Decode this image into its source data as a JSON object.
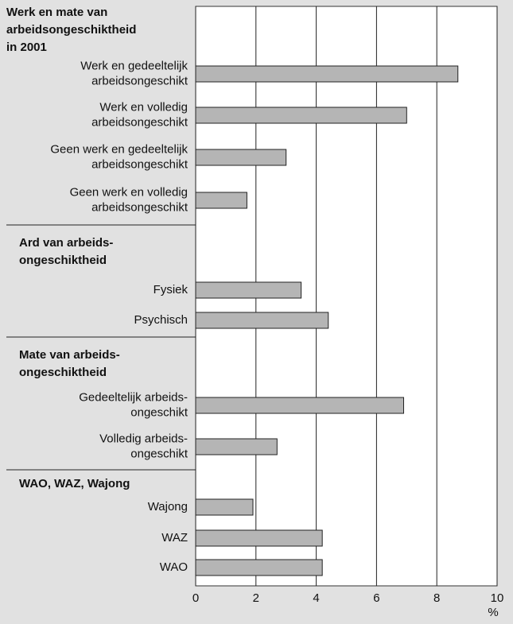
{
  "chart_data": {
    "type": "bar",
    "orientation": "horizontal",
    "color": "#b5b5b5",
    "xlim": [
      0,
      10
    ],
    "xticks": [
      0,
      2,
      4,
      6,
      8,
      10
    ],
    "x_unit": "%",
    "grid": true,
    "groups": [
      {
        "title": [
          "Werk en mate van",
          "arbeidsongeschiktheid",
          "in 2001"
        ],
        "categories": [
          [
            "Werk en gedeeltelijk",
            "arbeidsongeschikt"
          ],
          [
            "Werk en volledig",
            "arbeidsongeschikt"
          ],
          [
            "Geen werk en gedeeltelijk",
            "arbeidsongeschikt"
          ],
          [
            "Geen werk en volledig",
            "arbeidsongeschikt"
          ]
        ],
        "values": [
          8.7,
          7.0,
          3.0,
          1.7
        ]
      },
      {
        "title": [
          "Ard van arbeids-",
          "ongeschiktheid"
        ],
        "categories": [
          [
            "Fysiek"
          ],
          [
            "Psychisch"
          ]
        ],
        "values": [
          3.5,
          4.4
        ]
      },
      {
        "title": [
          "Mate van arbeids-",
          "ongeschiktheid"
        ],
        "categories": [
          [
            "Gedeeltelijk arbeids-",
            "ongeschikt"
          ],
          [
            "Volledig arbeids-",
            "ongeschikt"
          ]
        ],
        "values": [
          6.9,
          2.7
        ]
      },
      {
        "title": [
          "WAO, WAZ, Wajong"
        ],
        "categories": [
          [
            "Wajong"
          ],
          [
            "WAZ"
          ],
          [
            "WAO"
          ]
        ],
        "values": [
          1.9,
          4.2,
          4.2
        ]
      }
    ]
  }
}
